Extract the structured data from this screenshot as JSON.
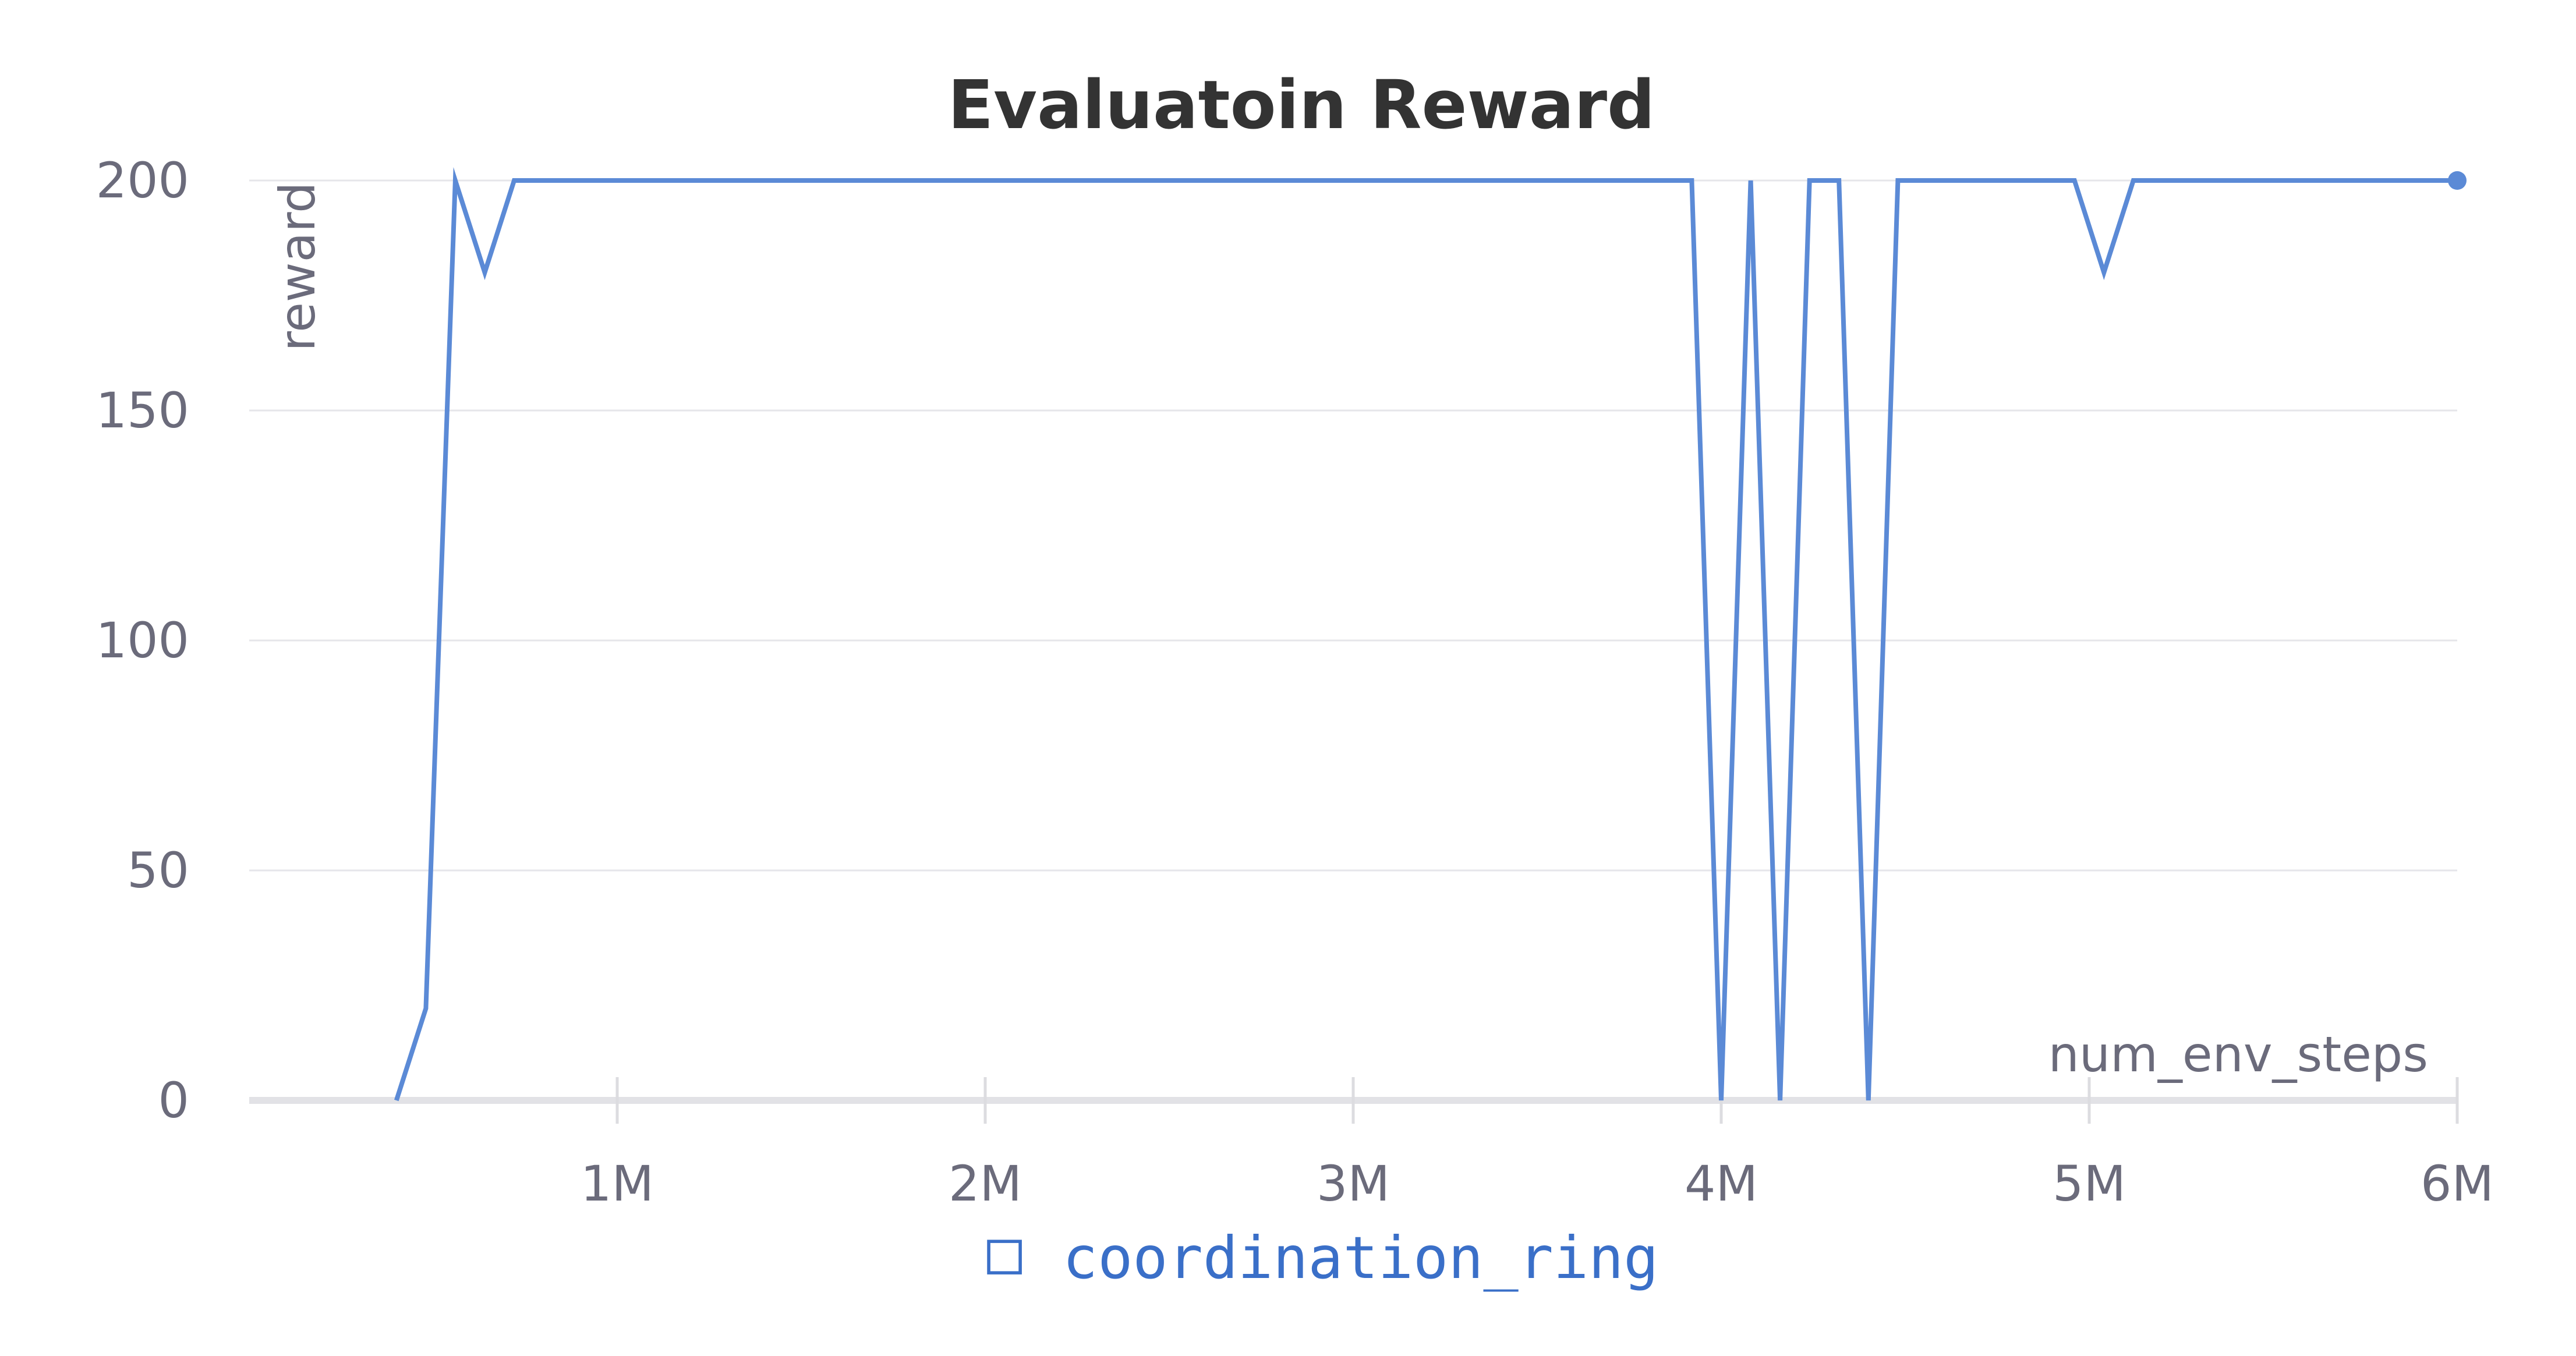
{
  "chart_data": {
    "type": "line",
    "title": "Evaluatoin Reward",
    "xlabel": "num_env_steps",
    "ylabel": "reward",
    "xlim": [
      0,
      6000000
    ],
    "ylim": [
      0,
      200
    ],
    "x_ticks": [
      {
        "value": 1000000,
        "label": "1M"
      },
      {
        "value": 2000000,
        "label": "2M"
      },
      {
        "value": 3000000,
        "label": "3M"
      },
      {
        "value": 4000000,
        "label": "4M"
      },
      {
        "value": 5000000,
        "label": "5M"
      },
      {
        "value": 6000000,
        "label": "6M"
      }
    ],
    "y_ticks": [
      {
        "value": 0,
        "label": "0"
      },
      {
        "value": 50,
        "label": "50"
      },
      {
        "value": 100,
        "label": "100"
      },
      {
        "value": 150,
        "label": "150"
      },
      {
        "value": 200,
        "label": "200"
      }
    ],
    "grid": true,
    "legend_position": "bottom-center",
    "series": [
      {
        "name": "coordination_ring",
        "color": "#5b8ad6",
        "x": [
          400000,
          480000,
          560000,
          640000,
          720000,
          3920000,
          4000000,
          4080000,
          4160000,
          4240000,
          4320000,
          4400000,
          4480000,
          4960000,
          5040000,
          5120000,
          6000000
        ],
        "y": [
          0,
          20,
          200,
          180,
          200,
          200,
          0,
          200,
          0,
          200,
          200,
          0,
          200,
          200,
          180,
          200,
          200
        ]
      }
    ]
  },
  "legend": {
    "marker_glyph": "□",
    "label": "coordination_ring"
  }
}
